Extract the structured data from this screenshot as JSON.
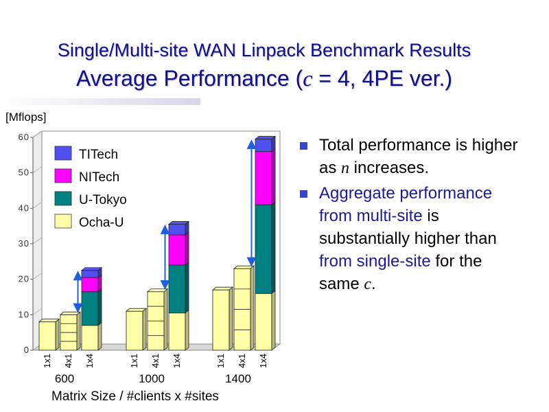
{
  "slide": {
    "title_line1": "Single/Multi-site WAN Linpack Benchmark Results",
    "title_line2_a": "Average Performance (",
    "title_line2_var": "c",
    "title_line2_b": " = 4, 4PE ver.)"
  },
  "bullets": [
    {
      "parts": [
        {
          "text": "Total performance is higher as "
        },
        {
          "text": "n",
          "style": "var"
        },
        {
          "text": " increases."
        }
      ]
    },
    {
      "parts": [
        {
          "text": "Aggregate performance from multi-site",
          "style": "hl"
        },
        {
          "text": " is substantially higher than "
        },
        {
          "text": "from single-site",
          "style": "hl"
        },
        {
          "text": " for the same "
        },
        {
          "text": "c",
          "style": "var"
        },
        {
          "text": "."
        }
      ]
    }
  ],
  "colors": {
    "title": "#10108a",
    "bullet_marker": "#3344d8",
    "arrow": "#1e5fe0"
  },
  "chart_data": {
    "type": "bar",
    "stacked": true,
    "ylabel": "[Mflops]",
    "xlabel": "Matrix Size  /  #clients x #sites",
    "ylim": [
      0,
      60
    ],
    "yticks": [
      0,
      10,
      20,
      30,
      40,
      50,
      60
    ],
    "groups": [
      "600",
      "1000",
      "1400"
    ],
    "bar_labels": [
      "1x1",
      "4x1",
      "1x4"
    ],
    "legend": [
      "TITech",
      "NITech",
      "U-Tokyo",
      "Ocha-U"
    ],
    "series_colors": {
      "Ocha-U": "#ffffa8",
      "U-Tokyo": "#008080",
      "NITech": "#ff00ff",
      "TITech": "#5050f0"
    },
    "bars": [
      {
        "group": "600",
        "label": "1x1",
        "total": 8,
        "divisions": 1,
        "segments": [
          {
            "series": "Ocha-U",
            "value": 8
          }
        ]
      },
      {
        "group": "600",
        "label": "4x1",
        "total": 10,
        "divisions": 4,
        "segments": [
          {
            "series": "Ocha-U",
            "value": 10
          }
        ]
      },
      {
        "group": "600",
        "label": "1x4",
        "total": 22.5,
        "divisions": 1,
        "segments": [
          {
            "series": "Ocha-U",
            "value": 7
          },
          {
            "series": "U-Tokyo",
            "value": 9.5
          },
          {
            "series": "NITech",
            "value": 4
          },
          {
            "series": "TITech",
            "value": 2
          }
        ]
      },
      {
        "group": "1000",
        "label": "1x1",
        "total": 11,
        "divisions": 1,
        "segments": [
          {
            "series": "Ocha-U",
            "value": 11
          }
        ]
      },
      {
        "group": "1000",
        "label": "4x1",
        "total": 16.5,
        "divisions": 4,
        "segments": [
          {
            "series": "Ocha-U",
            "value": 16.5
          }
        ]
      },
      {
        "group": "1000",
        "label": "1x4",
        "total": 35.5,
        "divisions": 1,
        "segments": [
          {
            "series": "Ocha-U",
            "value": 10.5
          },
          {
            "series": "U-Tokyo",
            "value": 13.5
          },
          {
            "series": "NITech",
            "value": 8.5
          },
          {
            "series": "TITech",
            "value": 3
          }
        ]
      },
      {
        "group": "1400",
        "label": "1x1",
        "total": 17,
        "divisions": 1,
        "segments": [
          {
            "series": "Ocha-U",
            "value": 17
          }
        ]
      },
      {
        "group": "1400",
        "label": "4x1",
        "total": 23,
        "divisions": 4,
        "segments": [
          {
            "series": "Ocha-U",
            "value": 23
          }
        ]
      },
      {
        "group": "1400",
        "label": "1x4",
        "total": 59.5,
        "divisions": 1,
        "segments": [
          {
            "series": "Ocha-U",
            "value": 16
          },
          {
            "series": "U-Tokyo",
            "value": 25
          },
          {
            "series": "NITech",
            "value": 15
          },
          {
            "series": "TITech",
            "value": 3.5
          }
        ]
      }
    ],
    "comparison_arrows": [
      {
        "group": "600",
        "from": 10,
        "to": 22.5
      },
      {
        "group": "1000",
        "from": 16.5,
        "to": 35.5
      },
      {
        "group": "1400",
        "from": 23,
        "to": 59.5
      }
    ]
  }
}
